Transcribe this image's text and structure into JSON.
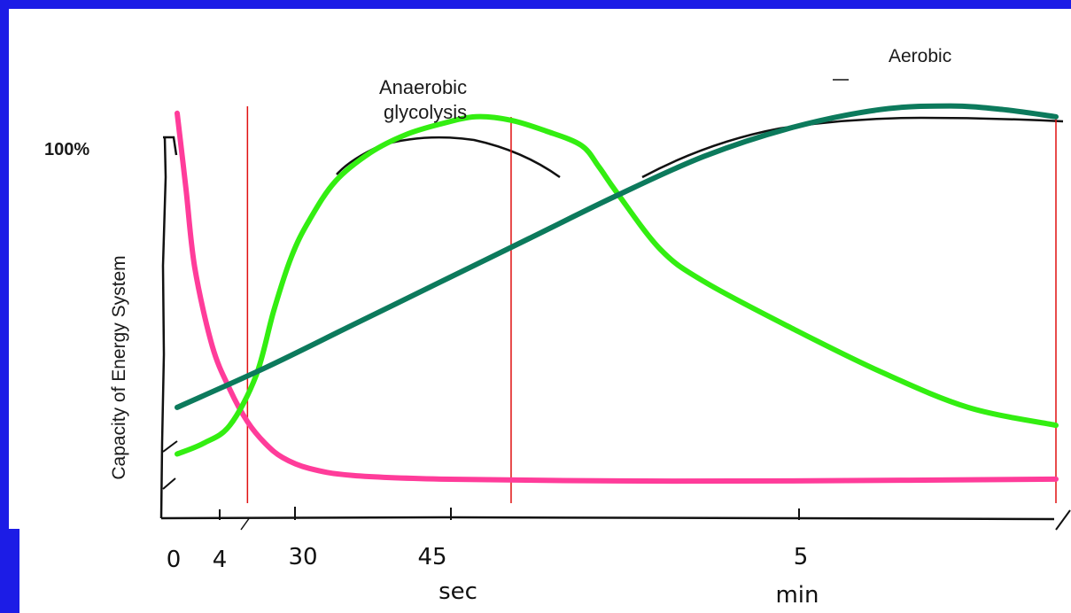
{
  "colors": {
    "background": "#1c1ce6",
    "panel": "#ffffff",
    "atp_pc": "#ff3c9a",
    "glycolysis": "#33ee11",
    "aerobic": "#0c7a5c",
    "marker": "#e01010"
  },
  "chart_data": {
    "type": "line",
    "title": "",
    "ylabel": "Capacity of Energy System",
    "ytick_labels": [
      "100%"
    ],
    "xtick_labels": [
      "0",
      "4",
      "30",
      "45",
      "5"
    ],
    "xunit_labels": [
      "sec",
      "min"
    ],
    "annotations": [
      "Anaerobic",
      "glycolysis",
      "Aerobic"
    ],
    "x_scale": "nonlinear (seconds then minutes)",
    "ylim": [
      0,
      110
    ],
    "xlim": [
      0,
      100
    ],
    "legend": "none",
    "grid": false,
    "markers": [
      8,
      38,
      100
    ],
    "series": [
      {
        "key": "atp_pc",
        "x": [
          0,
          1,
          2,
          4,
          6,
          8,
          10,
          12,
          15,
          20,
          30,
          50,
          70,
          100
        ],
        "values": [
          105,
          84,
          62,
          40,
          28,
          19,
          13,
          9,
          6,
          4,
          3,
          2.5,
          2.5,
          3
        ]
      },
      {
        "key": "glycolysis",
        "x": [
          0,
          3,
          6,
          9,
          11,
          13,
          15,
          18,
          22,
          26,
          30,
          34,
          38,
          42,
          46,
          48,
          50,
          55,
          60,
          70,
          80,
          90,
          100
        ],
        "values": [
          10,
          13,
          18,
          32,
          50,
          65,
          75,
          86,
          94,
          99,
          102,
          104,
          103,
          100,
          96,
          90,
          83,
          67,
          58,
          45,
          33,
          23,
          18
        ]
      },
      {
        "key": "aerobic",
        "x": [
          0,
          10,
          20,
          30,
          40,
          50,
          60,
          70,
          80,
          88,
          94,
          100
        ],
        "values": [
          23,
          34,
          46,
          58,
          70,
          82,
          93,
          101,
          106,
          107,
          106,
          104
        ]
      }
    ]
  }
}
